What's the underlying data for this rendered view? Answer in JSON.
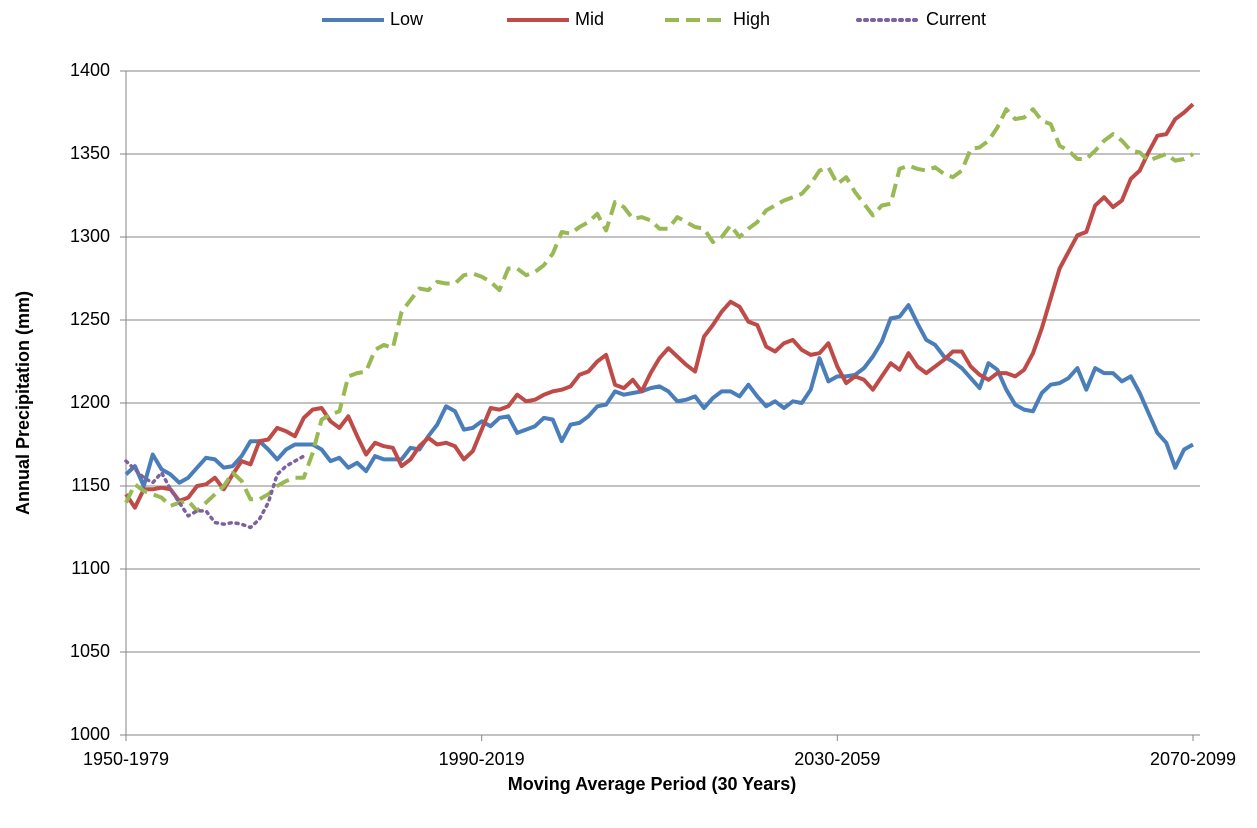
{
  "chart_data": {
    "type": "line",
    "x_label": "Moving Average Period (30 Years)",
    "y_label": "Annual Precipitation (mm)",
    "categories": [
      "1950-1979",
      null,
      null,
      null,
      null,
      null,
      null,
      null,
      null,
      null,
      null,
      null,
      null,
      null,
      null,
      null,
      null,
      null,
      null,
      null,
      null,
      null,
      null,
      null,
      null,
      null,
      null,
      null,
      null,
      null,
      null,
      null,
      null,
      null,
      null,
      null,
      null,
      null,
      null,
      null,
      "1990-2019",
      null,
      null,
      null,
      null,
      null,
      null,
      null,
      null,
      null,
      null,
      null,
      null,
      null,
      null,
      null,
      null,
      null,
      null,
      null,
      null,
      null,
      null,
      null,
      null,
      null,
      null,
      null,
      null,
      null,
      null,
      null,
      null,
      null,
      null,
      null,
      null,
      null,
      null,
      null,
      "2030-2059",
      null,
      null,
      null,
      null,
      null,
      null,
      null,
      null,
      null,
      null,
      null,
      null,
      null,
      null,
      null,
      null,
      null,
      null,
      null,
      null,
      null,
      null,
      null,
      null,
      null,
      null,
      null,
      null,
      null,
      null,
      null,
      null,
      null,
      null,
      null,
      null,
      null,
      null,
      null,
      "2070-2099"
    ],
    "ylim": [
      1000,
      1400
    ],
    "yticks": [
      1000,
      1050,
      1100,
      1150,
      1200,
      1250,
      1300,
      1350,
      1400
    ],
    "grid": true,
    "legend": "top",
    "series": [
      {
        "name": "Low",
        "color": "#4a7ebb",
        "dash": "solid",
        "values": [
          1157,
          1162,
          1150,
          1169,
          1160,
          1157,
          1152,
          1155,
          1161,
          1167,
          1166,
          1161,
          1162,
          1168,
          1177,
          1177,
          1172,
          1166,
          1172,
          1175,
          1175,
          1175,
          1172,
          1165,
          1167,
          1161,
          1164,
          1159,
          1168,
          1166,
          1166,
          1166,
          1173,
          1172,
          1180,
          1187,
          1198,
          1195,
          1184,
          1185,
          1189,
          1186,
          1191,
          1192,
          1182,
          1184,
          1186,
          1191,
          1190,
          1177,
          1187,
          1188,
          1192,
          1198,
          1199,
          1207,
          1205,
          1206,
          1207,
          1209,
          1210,
          1207,
          1201,
          1202,
          1204,
          1197,
          1203,
          1207,
          1207,
          1204,
          1211,
          1204,
          1198,
          1201,
          1197,
          1201,
          1200,
          1208,
          1227,
          1213,
          1216,
          1216,
          1217,
          1221,
          1228,
          1237,
          1251,
          1252,
          1259,
          1248,
          1238,
          1235,
          1228,
          1225,
          1221,
          1215,
          1209,
          1224,
          1220,
          1208,
          1199,
          1196,
          1195,
          1206,
          1211,
          1212,
          1215,
          1221,
          1208,
          1221,
          1218,
          1218,
          1213,
          1216,
          1206,
          1194,
          1182,
          1176,
          1161,
          1172,
          1175
        ]
      },
      {
        "name": "Mid",
        "color": "#be4b48",
        "dash": "solid",
        "values": [
          1145,
          1137,
          1148,
          1148,
          1149,
          1148,
          1141,
          1143,
          1150,
          1151,
          1155,
          1148,
          1157,
          1165,
          1163,
          1177,
          1178,
          1185,
          1183,
          1180,
          1191,
          1196,
          1197,
          1189,
          1185,
          1192,
          1180,
          1169,
          1176,
          1174,
          1173,
          1162,
          1166,
          1174,
          1179,
          1175,
          1176,
          1174,
          1166,
          1171,
          1184,
          1197,
          1196,
          1198,
          1205,
          1201,
          1202,
          1205,
          1207,
          1208,
          1210,
          1217,
          1219,
          1225,
          1229,
          1211,
          1209,
          1214,
          1207,
          1218,
          1227,
          1233,
          1228,
          1223,
          1219,
          1240,
          1247,
          1255,
          1261,
          1258,
          1249,
          1247,
          1234,
          1231,
          1236,
          1238,
          1232,
          1229,
          1230,
          1236,
          1222,
          1212,
          1216,
          1214,
          1208,
          1216,
          1224,
          1220,
          1230,
          1222,
          1218,
          1222,
          1226,
          1231,
          1231,
          1222,
          1217,
          1214,
          1218,
          1218,
          1216,
          1220,
          1230,
          1245,
          1263,
          1281,
          1291,
          1301,
          1303,
          1319,
          1324,
          1318,
          1322,
          1335,
          1340,
          1351,
          1361,
          1362,
          1371,
          1375,
          1380
        ]
      },
      {
        "name": "High",
        "color": "#98b954",
        "dash": "dashed",
        "values": [
          1140,
          1151,
          1147,
          1145,
          1143,
          1138,
          1140,
          1141,
          1135,
          1140,
          1145,
          1150,
          1158,
          1153,
          1142,
          1142,
          1145,
          1150,
          1153,
          1155,
          1155,
          1170,
          1190,
          1193,
          1195,
          1216,
          1218,
          1219,
          1232,
          1235,
          1233,
          1255,
          1262,
          1269,
          1268,
          1273,
          1272,
          1272,
          1277,
          1278,
          1276,
          1273,
          1268,
          1281,
          1281,
          1277,
          1279,
          1283,
          1290,
          1303,
          1302,
          1306,
          1309,
          1314,
          1304,
          1321,
          1318,
          1311,
          1312,
          1310,
          1305,
          1305,
          1312,
          1309,
          1306,
          1305,
          1297,
          1300,
          1307,
          1300,
          1305,
          1309,
          1316,
          1319,
          1322,
          1324,
          1326,
          1332,
          1340,
          1342,
          1332,
          1336,
          1327,
          1320,
          1313,
          1319,
          1320,
          1341,
          1343,
          1341,
          1340,
          1342,
          1338,
          1336,
          1340,
          1353,
          1354,
          1358,
          1366,
          1377,
          1371,
          1372,
          1377,
          1370,
          1368,
          1355,
          1352,
          1347,
          1347,
          1352,
          1358,
          1362,
          1358,
          1352,
          1351,
          1346,
          1348,
          1350,
          1346,
          1347,
          1350
        ]
      },
      {
        "name": "Current",
        "color": "#7d60a0",
        "dash": "dotted",
        "values": [
          1165,
          1160,
          1155,
          1152,
          1158,
          1148,
          1140,
          1132,
          1135,
          1135,
          1128,
          1127,
          1128,
          1127,
          1125,
          1130,
          1140,
          1157,
          1162,
          1165,
          1168,
          null,
          null,
          null,
          null,
          null,
          null,
          null,
          null,
          null,
          null,
          null,
          null,
          null,
          null,
          null,
          null,
          null,
          null,
          null,
          null,
          null,
          null,
          null,
          null,
          null,
          null,
          null,
          null,
          null,
          null,
          null,
          null,
          null,
          null,
          null,
          null,
          null,
          null,
          null,
          null,
          null,
          null,
          null,
          null,
          null,
          null,
          null,
          null,
          null,
          null,
          null,
          null,
          null,
          null,
          null,
          null,
          null,
          null,
          null,
          null,
          null,
          null,
          null,
          null,
          null,
          null,
          null,
          null,
          null,
          null,
          null,
          null,
          null,
          null,
          null,
          null,
          null,
          null,
          null,
          null,
          null,
          null,
          null,
          null,
          null,
          null,
          null,
          null,
          null,
          null,
          null,
          null,
          null,
          null,
          null,
          null,
          null,
          null,
          null,
          null
        ]
      }
    ]
  }
}
